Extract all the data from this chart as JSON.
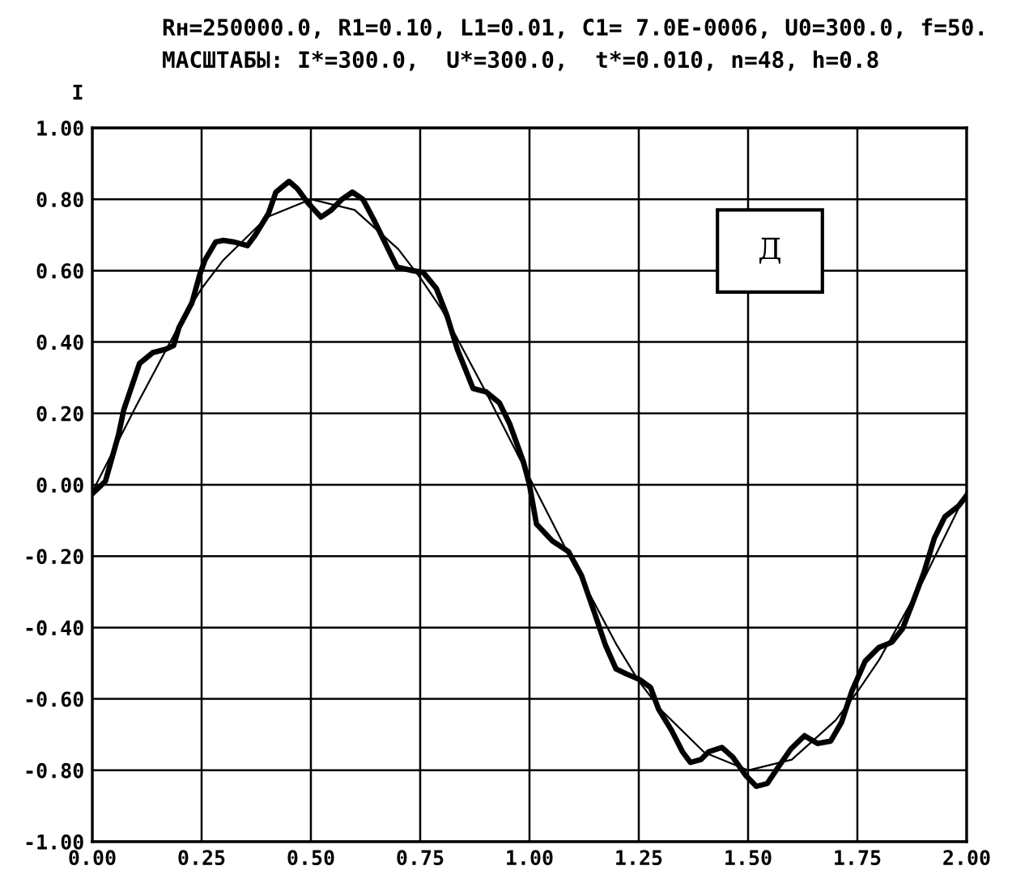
{
  "chart_data": {
    "type": "line",
    "title": "Rн=250000.0, R1=0.10, L1=0.01, C1= 7.0E-0006, U0=300.0, f=50.",
    "subtitle": "МАСШТАБЫ: I*=300.0,  U*=300.0,  t*=0.010, n=48, h=0.8",
    "ylabel": "I",
    "annotations": [
      "Д"
    ],
    "series": [
      {
        "color": "#000000",
        "x": [
          0,
          0.1,
          0.2,
          0.25,
          0.3,
          0.4,
          0.5,
          0.6,
          0.7,
          0.75,
          0.8,
          0.9,
          1.0,
          1.1,
          1.2,
          1.25,
          1.3,
          1.4,
          1.5,
          1.6,
          1.7,
          1.75,
          1.8,
          1.9,
          2.0
        ],
        "values": [
          -0.02,
          0.22,
          0.45,
          0.55,
          0.63,
          0.75,
          0.8,
          0.77,
          0.66,
          0.58,
          0.49,
          0.26,
          0.02,
          -0.22,
          -0.45,
          -0.55,
          -0.63,
          -0.75,
          -0.8,
          -0.77,
          -0.66,
          -0.58,
          -0.49,
          -0.27,
          -0.02
        ]
      },
      {
        "color": "#000000",
        "x": [
          0,
          0.03,
          0.06,
          0.072,
          0.108,
          0.138,
          0.168,
          0.186,
          0.198,
          0.228,
          0.246,
          0.258,
          0.282,
          0.3,
          0.325,
          0.355,
          0.373,
          0.403,
          0.42,
          0.45,
          0.469,
          0.493,
          0.523,
          0.547,
          0.571,
          0.595,
          0.619,
          0.643,
          0.667,
          0.697,
          0.733,
          0.757,
          0.787,
          0.811,
          0.835,
          0.871,
          0.901,
          0.931,
          0.955,
          0.986,
          1.0,
          1.016,
          1.052,
          1.089,
          1.119,
          1.149,
          1.174,
          1.198,
          1.222,
          1.252,
          1.277,
          1.295,
          1.325,
          1.35,
          1.368,
          1.392,
          1.41,
          1.44,
          1.465,
          1.495,
          1.519,
          1.544,
          1.568,
          1.598,
          1.629,
          1.659,
          1.689,
          1.714,
          1.738,
          1.768,
          1.799,
          1.829,
          1.853,
          1.877,
          1.902,
          1.926,
          1.95,
          1.981,
          2.0
        ],
        "values": [
          -0.025,
          0.01,
          0.14,
          0.21,
          0.34,
          0.37,
          0.38,
          0.39,
          0.44,
          0.51,
          0.59,
          0.63,
          0.68,
          0.685,
          0.68,
          0.67,
          0.7,
          0.76,
          0.82,
          0.85,
          0.83,
          0.79,
          0.75,
          0.77,
          0.8,
          0.82,
          0.8,
          0.745,
          0.685,
          0.61,
          0.6,
          0.595,
          0.55,
          0.475,
          0.38,
          0.27,
          0.26,
          0.23,
          0.17,
          0.065,
          0.0,
          -0.11,
          -0.157,
          -0.187,
          -0.254,
          -0.36,
          -0.45,
          -0.516,
          -0.53,
          -0.546,
          -0.568,
          -0.628,
          -0.688,
          -0.748,
          -0.778,
          -0.77,
          -0.748,
          -0.736,
          -0.763,
          -0.815,
          -0.845,
          -0.837,
          -0.793,
          -0.74,
          -0.703,
          -0.725,
          -0.718,
          -0.665,
          -0.576,
          -0.494,
          -0.456,
          -0.441,
          -0.404,
          -0.329,
          -0.247,
          -0.15,
          -0.09,
          -0.06,
          -0.03
        ]
      }
    ],
    "xlim": [
      0,
      2
    ],
    "xticks": [
      {
        "value": 0,
        "label": "0.00"
      },
      {
        "value": 0.25,
        "label": "0.25"
      },
      {
        "value": 0.5,
        "label": "0.50"
      },
      {
        "value": 0.75,
        "label": "0.75"
      },
      {
        "value": 1,
        "label": "1.00"
      },
      {
        "value": 1.25,
        "label": "1.25"
      },
      {
        "value": 1.5,
        "label": "1.50"
      },
      {
        "value": 1.75,
        "label": "1.75"
      },
      {
        "value": 2,
        "label": "2.00"
      }
    ],
    "ylim": [
      -1,
      1
    ],
    "yticks": [
      {
        "value": -1,
        "label": "-1.00"
      },
      {
        "value": -0.8,
        "label": "-0.80"
      },
      {
        "value": -0.6,
        "label": "-0.60"
      },
      {
        "value": -0.4,
        "label": "-0.40"
      },
      {
        "value": -0.2,
        "label": "-0.20"
      },
      {
        "value": 0,
        "label": "0.00"
      },
      {
        "value": 0.2,
        "label": "0.20"
      },
      {
        "value": 0.4,
        "label": "0.40"
      },
      {
        "value": 0.6,
        "label": "0.60"
      },
      {
        "value": 0.8,
        "label": "0.80"
      },
      {
        "value": 1,
        "label": "1.00"
      }
    ],
    "grid": true
  }
}
